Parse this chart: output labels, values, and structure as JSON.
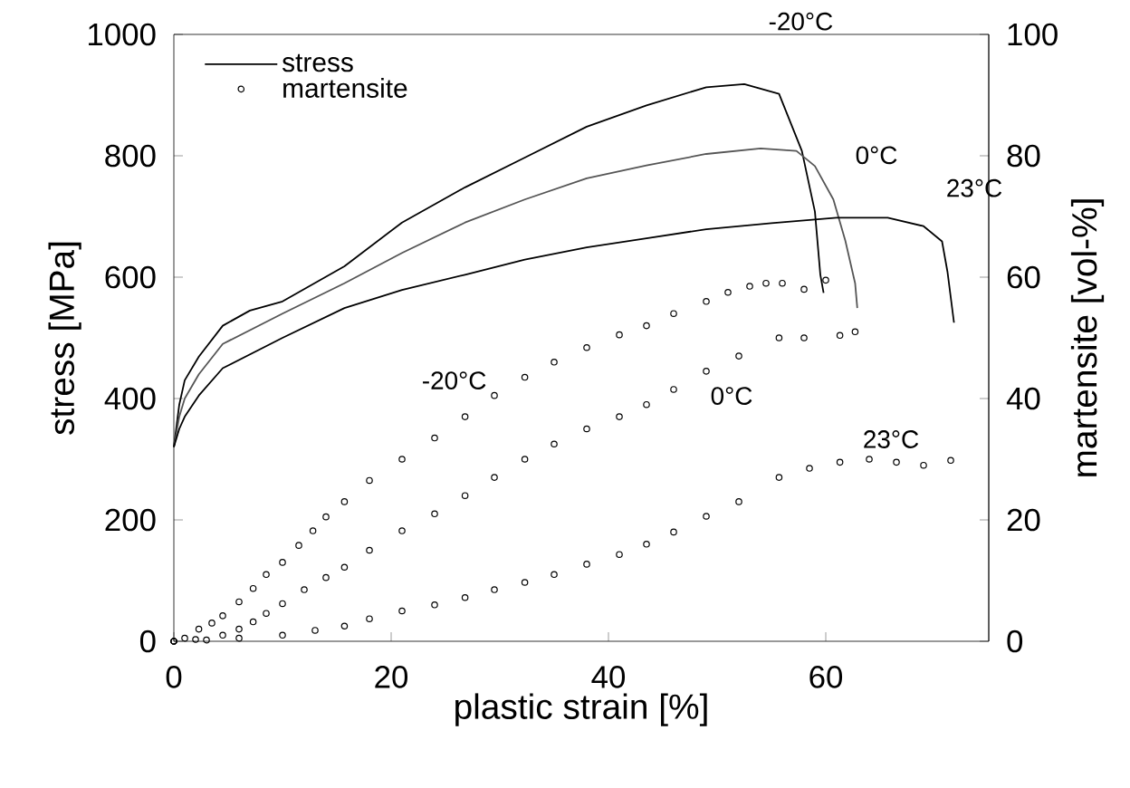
{
  "chart_data": {
    "type": "line",
    "xlabel": "plastic strain [%]",
    "ylabel": "stress [MPa]",
    "y2label": "martensite [vol-%]",
    "xlim": [
      0,
      75
    ],
    "xticks": [
      0,
      20,
      40,
      60
    ],
    "ylim": [
      0,
      1000
    ],
    "yticks": [
      0,
      200,
      400,
      600,
      800,
      1000
    ],
    "y2lim": [
      0,
      100
    ],
    "y2ticks": [
      0,
      20,
      40,
      60,
      80,
      100
    ],
    "legend": "top left",
    "series": [
      {
        "name": "stress",
        "marker": "none",
        "color": "#000000",
        "x": [
          0,
          0.5,
          1,
          2.3,
          4.5,
          7,
          10,
          15.7,
          21,
          26.8,
          32.3,
          38,
          43.5,
          49,
          52.5,
          55.7,
          57.8,
          59,
          59.5,
          59.8
        ],
        "values": [
          320,
          390,
          430,
          469,
          520,
          545,
          560,
          618,
          690,
          748,
          797,
          848,
          883,
          913,
          918,
          902,
          808,
          708,
          604,
          574
        ]
      },
      {
        "marker": "none",
        "color": "#555555",
        "x": [
          0,
          0.5,
          1,
          2.3,
          4.5,
          10,
          15.7,
          21,
          26.8,
          32.3,
          38,
          43.5,
          49,
          54,
          57.3,
          59,
          60.7,
          61.8,
          62.7,
          62.9
        ],
        "values": [
          320,
          370,
          400,
          440,
          490,
          540,
          590,
          640,
          690,
          728,
          763,
          784,
          803,
          812,
          808,
          783,
          728,
          660,
          590,
          549
        ]
      },
      {
        "marker": "none",
        "color": "#000000",
        "x": [
          0,
          0.5,
          1,
          2.3,
          4.5,
          10,
          15.7,
          21,
          26.8,
          32.3,
          38,
          43.5,
          49,
          55,
          61,
          65.7,
          69,
          70.7,
          71.2,
          71.8
        ],
        "values": [
          320,
          350,
          370,
          405,
          450,
          500,
          549,
          579,
          604,
          629,
          649,
          664,
          679,
          689,
          698,
          698,
          684,
          659,
          609,
          525
        ]
      },
      {
        "name": "martensite",
        "type": "scatter",
        "marker": "circle",
        "axis": "y2",
        "color": "#000000",
        "x": [
          0,
          1,
          2.3,
          3.5,
          4.5,
          6,
          7.3,
          8.5,
          10,
          11.5,
          12.8,
          14,
          15.7,
          18,
          21,
          24,
          26.8,
          29.5,
          32.3,
          35,
          38,
          41,
          43.5,
          46,
          49,
          51,
          53,
          54.5,
          56,
          58,
          60
        ],
        "values": [
          0,
          0.5,
          2,
          3,
          4.2,
          6.5,
          8.7,
          11,
          13,
          15.8,
          18.2,
          20.5,
          23,
          26.5,
          30,
          33.5,
          37,
          40.5,
          43.5,
          46,
          48.4,
          50.5,
          52,
          54,
          56,
          57.5,
          58.5,
          59,
          59,
          58,
          59.5
        ]
      },
      {
        "type": "scatter",
        "marker": "circle",
        "axis": "y2",
        "color": "#000000",
        "x": [
          0,
          2,
          4.5,
          6,
          7.3,
          8.5,
          10,
          12,
          14,
          15.7,
          18,
          21,
          24,
          26.8,
          29.5,
          32.3,
          35,
          38,
          41,
          43.5,
          46,
          49,
          52,
          55.7,
          58,
          61.3,
          62.7
        ],
        "values": [
          0,
          0.3,
          1,
          2,
          3.2,
          4.6,
          6.2,
          8.5,
          10.5,
          12.2,
          15,
          18.2,
          21,
          24,
          27,
          30,
          32.5,
          35,
          37,
          39,
          41.5,
          44.5,
          47,
          50,
          50,
          50.4,
          51
        ]
      },
      {
        "type": "scatter",
        "marker": "circle",
        "axis": "y2",
        "color": "#000000",
        "x": [
          0,
          3,
          6,
          10,
          13,
          15.7,
          18,
          21,
          24,
          26.8,
          29.5,
          32.3,
          35,
          38,
          41,
          43.5,
          46,
          49,
          52,
          55.7,
          58.5,
          61.3,
          64,
          66.5,
          69,
          71.5
        ],
        "values": [
          0,
          0.2,
          0.5,
          1,
          1.8,
          2.5,
          3.7,
          5,
          6,
          7.2,
          8.5,
          9.7,
          11,
          12.7,
          14.3,
          16,
          18,
          20.6,
          23,
          27,
          28.5,
          29.5,
          30,
          29.5,
          29,
          29.8
        ]
      }
    ],
    "annotations": [
      {
        "text": "-20°C",
        "x": 55.7,
        "y": 902
      },
      {
        "text": "0°C",
        "x": 59,
        "y": 783
      },
      {
        "text": "23°C",
        "x": 69,
        "y": 684
      },
      {
        "text": "-20°C",
        "x": 26.8,
        "y": 370
      },
      {
        "text": "0°C",
        "x": 52,
        "y": 470
      },
      {
        "text": "23°C",
        "x": 64,
        "y": 300
      }
    ]
  }
}
